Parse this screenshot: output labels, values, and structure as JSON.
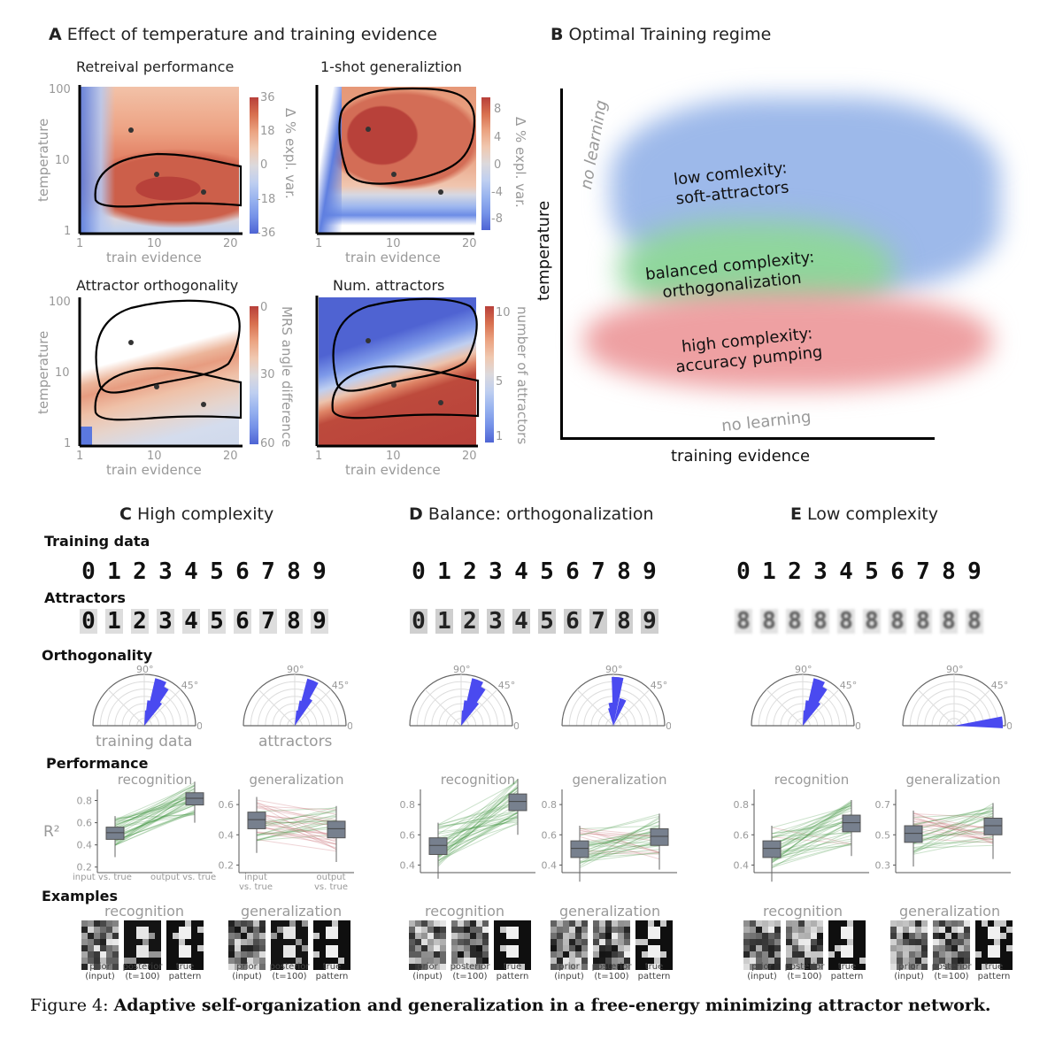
{
  "panelA": {
    "letter": "A",
    "title": "Effect of temperature and training evidence",
    "plots": [
      {
        "title": "Retreival performance",
        "ylabel": "temperature",
        "xlabel": "train evidence",
        "yticks": [
          "100",
          "10",
          "1"
        ],
        "xticks": [
          "1",
          "10",
          "20"
        ],
        "cbar_ticks": [
          "36",
          "18",
          "0",
          "-18",
          "-36"
        ],
        "cbar_label": "Δ % expl. var."
      },
      {
        "title": "1-shot generaliztion",
        "ylabel": "",
        "xlabel": "train evidence",
        "yticks": [],
        "xticks": [
          "1",
          "10",
          "20"
        ],
        "cbar_ticks": [
          "8",
          "4",
          "0",
          "-4",
          "-8"
        ],
        "cbar_label": "Δ % expl. var."
      },
      {
        "title": "Attractor orthogonality",
        "ylabel": "temperature",
        "xlabel": "train evidence",
        "yticks": [
          "100",
          "10",
          "1"
        ],
        "xticks": [
          "1",
          "10",
          "20"
        ],
        "cbar_ticks": [
          "0",
          "30",
          "60"
        ],
        "cbar_label": "MRS angle difference"
      },
      {
        "title": "Num. attractors",
        "ylabel": "",
        "xlabel": "train evidence",
        "yticks": [],
        "xticks": [
          "1",
          "10",
          "20"
        ],
        "cbar_ticks": [
          "10",
          "5",
          "1"
        ],
        "cbar_label": "number of attractors"
      }
    ]
  },
  "panelB": {
    "letter": "B",
    "title": "Optimal Training regime",
    "ylabel": "temperature",
    "xlabel": "training evidence",
    "regions": [
      {
        "line1": "low comlexity:",
        "line2": "soft-attractors",
        "color": "#9db9ea"
      },
      {
        "line1": "balanced complexity:",
        "line2": "orthogonalization",
        "color": "#8fd69c"
      },
      {
        "line1": "high complexity:",
        "line2": "accuracy pumping",
        "color": "#eea0a2"
      }
    ],
    "no_learning_top": "no learning",
    "no_learning_bottom": "no learning"
  },
  "columns": [
    {
      "letter": "C",
      "title": "High complexity",
      "recognition": {
        "yticks": [
          "0.8",
          "0.6",
          "0.4",
          "0.2"
        ]
      },
      "generalization": {
        "yticks": [
          "0.6",
          "0.4",
          "0.2"
        ]
      }
    },
    {
      "letter": "D",
      "title": "Balance: orthogonalization",
      "recognition": {
        "yticks": [
          "0.8",
          "0.6",
          "0.4"
        ]
      },
      "generalization": {
        "yticks": [
          "0.8",
          "0.6",
          "0.4"
        ]
      }
    },
    {
      "letter": "E",
      "title": "Low complexity",
      "recognition": {
        "yticks": [
          "0.8",
          "0.6",
          "0.4"
        ]
      },
      "generalization": {
        "yticks": [
          "0.7",
          "0.5",
          "0.3"
        ]
      }
    }
  ],
  "sections": {
    "training_data": "Training data",
    "attractors": "Attractors",
    "orthogonality": "Orthogonality",
    "performance": "Performance",
    "examples": "Examples"
  },
  "digits": [
    "0",
    "1",
    "2",
    "3",
    "4",
    "5",
    "6",
    "7",
    "8",
    "9"
  ],
  "polar": {
    "label_90": "90°",
    "label_45": "45°",
    "label_0": "0°",
    "caption_training": "training data",
    "caption_attractors": "attractors"
  },
  "perf": {
    "recognition": "recognition",
    "generalization": "generalization",
    "r2": "R²",
    "x_input": "input vs. true",
    "x_output": "output vs. true",
    "x_input_l1": "input",
    "x_input_l2": "vs. true",
    "x_output_l1": "output",
    "x_output_l2": "vs. true"
  },
  "examples": {
    "recognition": "recognition",
    "generalization": "generalization",
    "prior_l1": "prior",
    "prior_l2": "(input)",
    "posterior_l1": "posterior",
    "posterior_l2": "(t=100)",
    "true_l1": "true",
    "true_l2": "pattern"
  },
  "caption": {
    "prefix": "Figure 4:",
    "text": "Adaptive self-organization and generalization in a free-energy minimizing attractor network."
  },
  "chart_data": [
    {
      "type": "heatmap",
      "title": "Retreival performance",
      "xlabel": "train evidence",
      "ylabel": "temperature",
      "x_range": [
        1,
        20
      ],
      "y_range": [
        1,
        100
      ],
      "y_scale": "log",
      "color_range": [
        -36,
        36
      ],
      "colorbar_label": "Δ % expl. var.",
      "markers": [
        [
          6,
          28
        ],
        [
          10,
          6.5
        ],
        [
          16,
          3.8
        ]
      ]
    },
    {
      "type": "heatmap",
      "title": "1-shot generaliztion",
      "xlabel": "train evidence",
      "ylabel": "temperature",
      "x_range": [
        1,
        20
      ],
      "y_range": [
        1,
        100
      ],
      "y_scale": "log",
      "color_range": [
        -8,
        8
      ],
      "colorbar_label": "Δ % expl. var.",
      "markers": [
        [
          6,
          28
        ],
        [
          10,
          6.5
        ],
        [
          16,
          3.8
        ]
      ]
    },
    {
      "type": "heatmap",
      "title": "Attractor orthogonality",
      "xlabel": "train evidence",
      "ylabel": "temperature",
      "x_range": [
        1,
        20
      ],
      "y_range": [
        1,
        100
      ],
      "y_scale": "log",
      "color_range": [
        0,
        60
      ],
      "colorbar_label": "MRS angle difference",
      "markers": [
        [
          6,
          28
        ],
        [
          10,
          6.5
        ],
        [
          16,
          3.8
        ]
      ]
    },
    {
      "type": "heatmap",
      "title": "Num. attractors",
      "xlabel": "train evidence",
      "ylabel": "temperature",
      "x_range": [
        1,
        20
      ],
      "y_range": [
        1,
        100
      ],
      "y_scale": "log",
      "color_range": [
        1,
        10
      ],
      "colorbar_label": "number of attractors",
      "markers": [
        [
          6,
          28
        ],
        [
          10,
          6.5
        ],
        [
          16,
          3.8
        ]
      ]
    },
    {
      "type": "bar",
      "title": "Performance (box medians, R²)",
      "categories": [
        "C recognition",
        "C generalization",
        "D recognition",
        "D generalization",
        "E recognition",
        "E generalization"
      ],
      "series": [
        {
          "name": "input vs. true",
          "values": [
            0.51,
            0.5,
            0.53,
            0.51,
            0.51,
            0.51
          ]
        },
        {
          "name": "output vs. true",
          "values": [
            0.82,
            0.44,
            0.82,
            0.59,
            0.68,
            0.56
          ]
        }
      ]
    }
  ]
}
